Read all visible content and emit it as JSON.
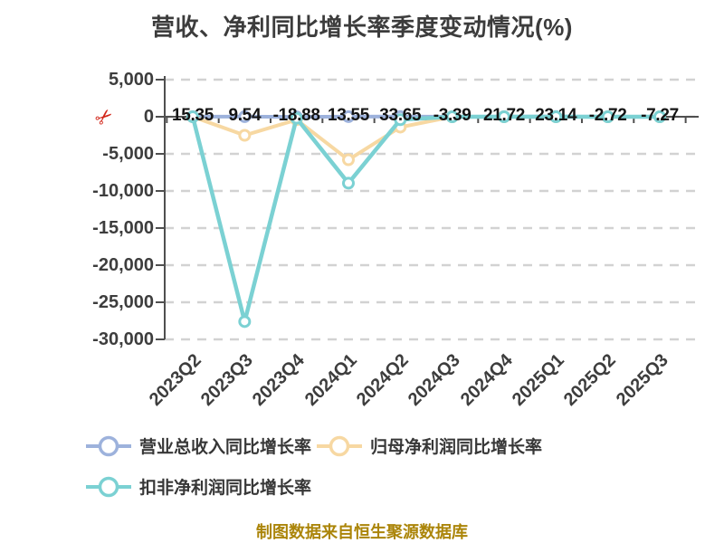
{
  "header": {
    "title": "营收、净利同比增长率季度变动情况(%)"
  },
  "footer": {
    "text": "制图数据来自恒生聚源数据库",
    "color": "#ab8509"
  },
  "icons": {
    "axis_break": "scissors-icon",
    "axis_break_glyph": "✂",
    "legend_marker": "line-circle-marker"
  },
  "chart_data": {
    "type": "line",
    "title": "营收、净利同比增长率季度变动情况(%)",
    "categories": [
      "2023Q2",
      "2023Q3",
      "2023Q4",
      "2024Q1",
      "2024Q2",
      "2024Q3",
      "2024Q4",
      "2025Q1",
      "2025Q2",
      "2025Q3"
    ],
    "series": [
      {
        "name": "营业总收入同比增长率",
        "color": "#9db2dc",
        "line_width": 4,
        "values": [
          15.35,
          9.54,
          -18.88,
          13.55,
          33.65,
          -3.39,
          21.72,
          23.14,
          -2.72,
          -7.27
        ],
        "show_labels": true
      },
      {
        "name": "归母净利润同比增长率",
        "color": "#f7d8a2",
        "line_width": 4,
        "values": [
          0,
          -2500,
          -400,
          -5800,
          -1400,
          0,
          0,
          0,
          0,
          0
        ],
        "show_labels": false,
        "values_estimated_from_pixels": true
      },
      {
        "name": "扣非净利润同比增长率",
        "color": "#7bd1d3",
        "line_width": 4.5,
        "values": [
          0,
          -27600,
          -200,
          -8950,
          -400,
          0,
          0,
          0,
          0,
          0
        ],
        "show_labels": false,
        "values_estimated_from_pixels": true
      }
    ],
    "y_axis": {
      "min": -30000,
      "max": 5000,
      "interval": 5000,
      "ticks": [
        {
          "value": 5000,
          "label": "5,000"
        },
        {
          "value": 0,
          "label": "0"
        },
        {
          "value": -5000,
          "label": "-5,000"
        },
        {
          "value": -10000,
          "label": "-10,000"
        },
        {
          "value": -15000,
          "label": "-15,000"
        },
        {
          "value": -20000,
          "label": "-20,000"
        },
        {
          "value": -25000,
          "label": "-25,000"
        },
        {
          "value": -30000,
          "label": "-30,000"
        }
      ],
      "axis_break": true
    },
    "x_axis": {
      "label_rotation": -45,
      "axis_on_zero": true
    },
    "grid": {
      "horizontal": true,
      "dashed": true,
      "color": "#d2d2d2"
    },
    "colors": {
      "axis": "#4f4f4f",
      "tick_label": "#3d3d3d",
      "data_label": "#141414",
      "title": "#3c3c3c",
      "scissors": "#d2271b",
      "marker_fill": "#ffffff"
    },
    "legend": {
      "position": "bottom"
    }
  }
}
